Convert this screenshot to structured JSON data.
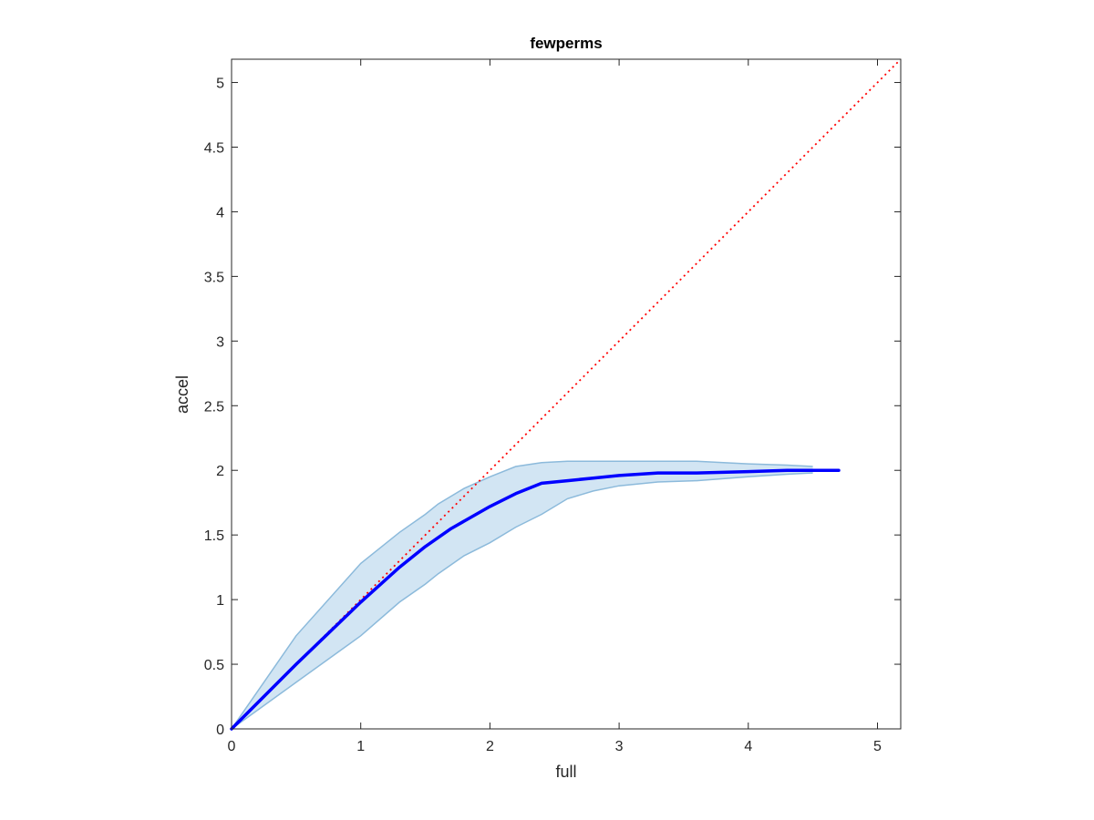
{
  "chart_data": {
    "type": "line",
    "title": "fewperms",
    "xlabel": "full",
    "ylabel": "accel",
    "xlim": [
      0,
      5.18
    ],
    "ylim": [
      0,
      5.18
    ],
    "xticks": [
      "0",
      "1",
      "2",
      "3",
      "4",
      "5"
    ],
    "yticks": [
      "0",
      "0.5",
      "1",
      "1.5",
      "2",
      "2.5",
      "3",
      "3.5",
      "4",
      "4.5",
      "5"
    ],
    "xtick_values": [
      0,
      1,
      2,
      3,
      4,
      5
    ],
    "ytick_values": [
      0,
      0.5,
      1,
      1.5,
      2,
      2.5,
      3,
      3.5,
      4,
      4.5,
      5
    ],
    "grid": false,
    "box": true,
    "colors": {
      "mean_line": "#0000ff",
      "band_fill": "#d2e5f3",
      "band_edge": "#8cbadb",
      "identity_line": "#ff0000",
      "axes": "#262626"
    },
    "series": [
      {
        "style": "solid-thick",
        "x": [
          0,
          0.5,
          1.0,
          1.3,
          1.5,
          1.7,
          2.0,
          2.2,
          2.4,
          2.6,
          2.8,
          3.0,
          3.3,
          3.6,
          4.0,
          4.3,
          4.7
        ],
        "y": [
          0,
          0.5,
          0.98,
          1.25,
          1.41,
          1.55,
          1.72,
          1.82,
          1.9,
          1.92,
          1.94,
          1.96,
          1.98,
          1.98,
          1.99,
          2.0,
          2.0
        ]
      },
      {
        "style": "dotted",
        "x": [
          0,
          5.18
        ],
        "y": [
          0,
          5.18
        ]
      }
    ],
    "band": {
      "x": [
        0,
        0.5,
        1.0,
        1.3,
        1.5,
        1.6,
        1.8,
        2.0,
        2.2,
        2.4,
        2.6,
        2.8,
        3.0,
        3.3,
        3.6,
        4.0,
        4.3,
        4.5
      ],
      "upper": [
        0,
        0.72,
        1.28,
        1.52,
        1.66,
        1.74,
        1.86,
        1.95,
        2.03,
        2.06,
        2.07,
        2.07,
        2.07,
        2.07,
        2.07,
        2.05,
        2.04,
        2.03
      ],
      "lower": [
        0,
        0.36,
        0.72,
        0.98,
        1.12,
        1.2,
        1.34,
        1.44,
        1.56,
        1.66,
        1.78,
        1.84,
        1.88,
        1.91,
        1.92,
        1.95,
        1.97,
        1.98
      ]
    }
  }
}
